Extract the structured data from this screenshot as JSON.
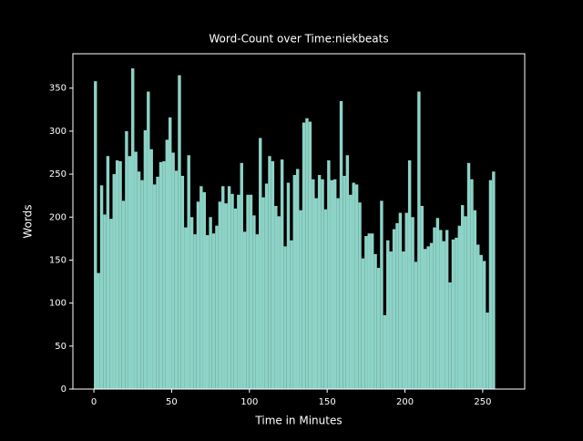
{
  "chart_data": {
    "type": "histogram",
    "title": "Word-Count over Time:niekbeats",
    "xlabel": "Time in Minutes",
    "ylabel": "Words",
    "color": "#8dd3c7",
    "bins": [
      0,
      2,
      4,
      6,
      8,
      10,
      12,
      14,
      16,
      18,
      20,
      22,
      24,
      26,
      28,
      30,
      32,
      34,
      36,
      38,
      40,
      42,
      44,
      46,
      48,
      50,
      52,
      54,
      56,
      58,
      60,
      62,
      64,
      66,
      68,
      70,
      72,
      74,
      76,
      78,
      80,
      82,
      84,
      86,
      88,
      90,
      92,
      94,
      96,
      98,
      100,
      102,
      104,
      106,
      108,
      110,
      112,
      114,
      116,
      118,
      120,
      122,
      124,
      126,
      128,
      130,
      132,
      134,
      136,
      138,
      140,
      142,
      144,
      146,
      148,
      150,
      152,
      154,
      156,
      158,
      160,
      162,
      164,
      166,
      168,
      170,
      172,
      174,
      176,
      178,
      180,
      182,
      184,
      186,
      188,
      190,
      192,
      194,
      196,
      198,
      200,
      202,
      204,
      206,
      208,
      210,
      212,
      214,
      216,
      218,
      220,
      222,
      224,
      226,
      228,
      230,
      232,
      234,
      236,
      238,
      240,
      242,
      244,
      246,
      248,
      250,
      252,
      254,
      256,
      258
    ],
    "values": [
      358,
      135,
      237,
      203,
      271,
      198,
      250,
      266,
      265,
      219,
      300,
      271,
      373,
      276,
      253,
      243,
      301,
      346,
      279,
      238,
      247,
      264,
      265,
      290,
      316,
      275,
      254,
      365,
      248,
      188,
      272,
      200,
      180,
      218,
      236,
      229,
      179,
      200,
      181,
      190,
      218,
      236,
      216,
      236,
      227,
      210,
      226,
      263,
      183,
      226,
      226,
      202,
      180,
      292,
      223,
      239,
      271,
      265,
      213,
      201,
      267,
      166,
      240,
      173,
      249,
      256,
      208,
      310,
      315,
      311,
      244,
      222,
      249,
      244,
      209,
      266,
      243,
      244,
      222,
      335,
      248,
      272,
      226,
      240,
      238,
      217,
      152,
      178,
      181,
      181,
      157,
      141,
      219,
      86,
      173,
      160,
      186,
      193,
      205,
      160,
      205,
      266,
      200,
      148,
      346,
      213,
      163,
      166,
      170,
      188,
      199,
      185,
      172,
      185,
      124,
      174,
      176,
      190,
      214,
      201,
      263,
      244,
      208,
      168,
      156,
      149,
      89,
      243,
      253
    ],
    "xlim": [
      -13.5,
      277
    ],
    "ylim": [
      0,
      390
    ],
    "xticks": [
      0,
      50,
      100,
      150,
      200,
      250
    ],
    "yticks": [
      0,
      50,
      100,
      150,
      200,
      250,
      300,
      350
    ]
  }
}
